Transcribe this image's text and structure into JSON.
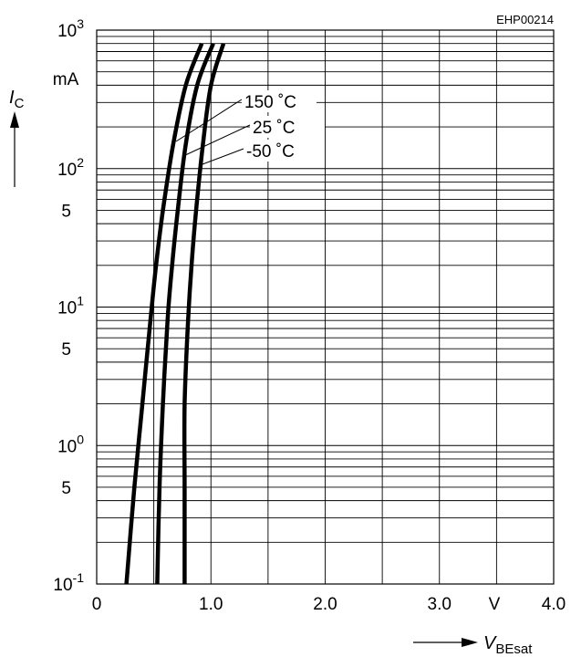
{
  "chart_data": {
    "type": "line",
    "code": "EHP00214",
    "x_axis": {
      "scale": "linear",
      "range": [
        0,
        4.0
      ],
      "ticks": [
        {
          "value": 0,
          "label": "0"
        },
        {
          "value": 1.0,
          "label": "1.0"
        },
        {
          "value": 2.0,
          "label": "2.0"
        },
        {
          "value": 3.0,
          "label": "3.0"
        },
        {
          "value": 4.0,
          "label": "4.0"
        }
      ],
      "unit": "V",
      "label": {
        "base": "V",
        "sub": "BEsat"
      }
    },
    "y_axis": {
      "scale": "log",
      "range": [
        0.1,
        1000
      ],
      "decade_labels": [
        {
          "value": 1000,
          "base": "10",
          "exp": "3"
        },
        {
          "value": 100,
          "base": "10",
          "exp": "2"
        },
        {
          "value": 10,
          "base": "10",
          "exp": "1"
        },
        {
          "value": 1,
          "base": "10",
          "exp": "0"
        },
        {
          "value": 0.1,
          "base": "10",
          "exp": "-1"
        }
      ],
      "five_labels": [
        {
          "value": 50,
          "label": "5"
        },
        {
          "value": 5,
          "label": "5"
        },
        {
          "value": 0.5,
          "label": "5"
        }
      ],
      "unit": "mA",
      "label": {
        "base": "I",
        "sub": "C"
      }
    },
    "grid": true,
    "series": [
      {
        "name": "150 ˚C",
        "points": [
          [
            0.26,
            0.1
          ],
          [
            0.33,
            0.5
          ],
          [
            0.4,
            2
          ],
          [
            0.47,
            8
          ],
          [
            0.52,
            20
          ],
          [
            0.58,
            50
          ],
          [
            0.67,
            150
          ],
          [
            0.78,
            400
          ],
          [
            0.92,
            800
          ]
        ]
      },
      {
        "name": "25 ˚C",
        "points": [
          [
            0.53,
            0.1
          ],
          [
            0.55,
            0.5
          ],
          [
            0.58,
            2
          ],
          [
            0.62,
            8
          ],
          [
            0.66,
            20
          ],
          [
            0.71,
            50
          ],
          [
            0.78,
            150
          ],
          [
            0.88,
            400
          ],
          [
            1.02,
            800
          ]
        ]
      },
      {
        "name": "-50 ˚C",
        "points": [
          [
            0.77,
            0.1
          ],
          [
            0.77,
            0.5
          ],
          [
            0.77,
            2
          ],
          [
            0.8,
            8
          ],
          [
            0.83,
            20
          ],
          [
            0.87,
            50
          ],
          [
            0.93,
            150
          ],
          [
            1.0,
            400
          ],
          [
            1.11,
            800
          ]
        ]
      }
    ]
  }
}
